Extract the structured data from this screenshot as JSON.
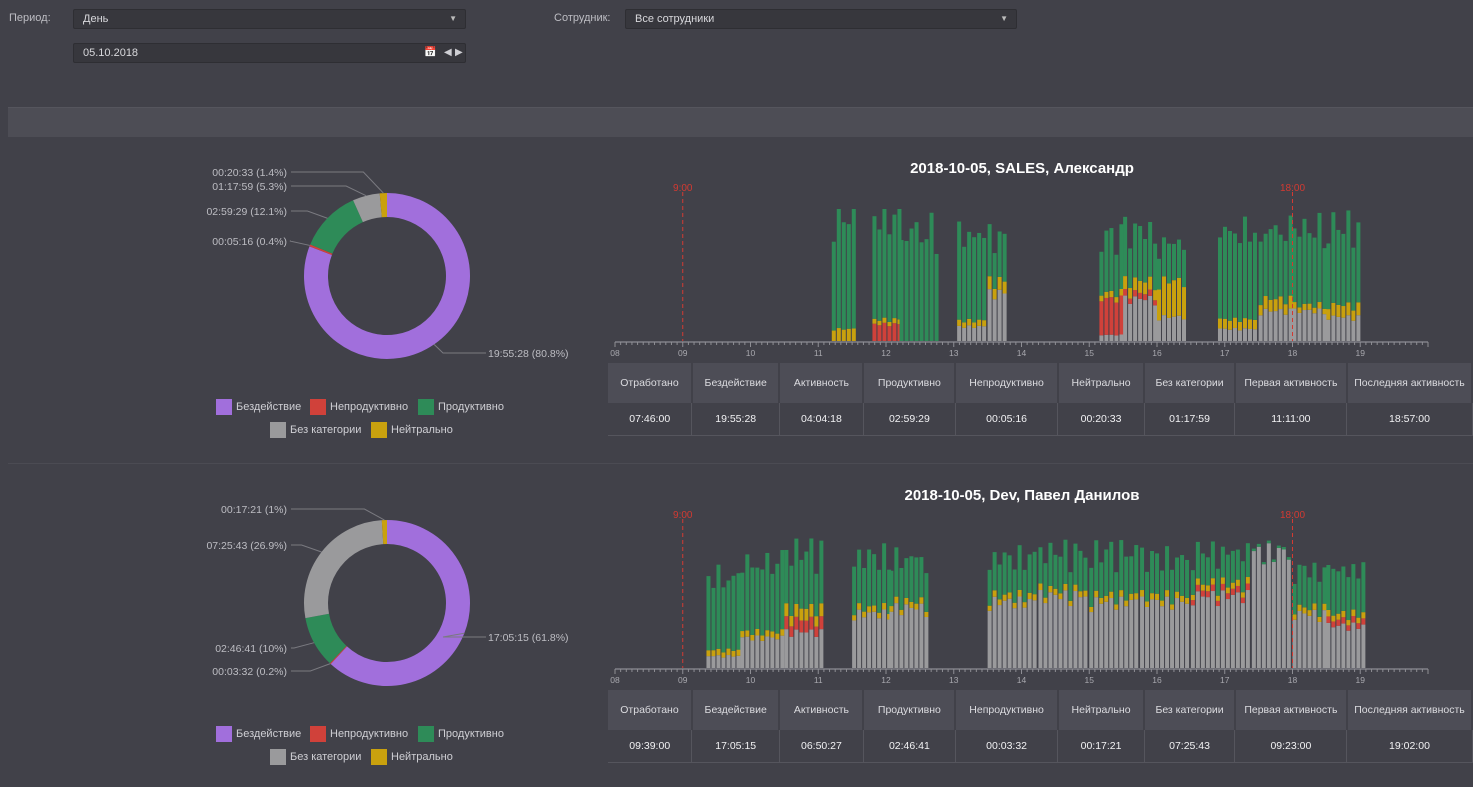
{
  "filters": {
    "period_label": "Период:",
    "period_value": "День",
    "employee_label": "Сотрудник:",
    "employee_value": "Все сотрудники",
    "date_value": "05.10.2018"
  },
  "icons": {
    "calendar": "calendar-icon",
    "prev": "arrow-left-icon",
    "next": "arrow-right-icon",
    "dropdown": "chevron-down-icon"
  },
  "colors": {
    "idle": "#a16fdc",
    "unproductive": "#d0413a",
    "productive": "#2e8b58",
    "uncategorized": "#9a9a9c",
    "neutral": "#c9a10e",
    "marker": "#d23a32"
  },
  "legend": {
    "idle": "Бездействие",
    "unproductive": "Непродуктивно",
    "productive": "Продуктивно",
    "uncategorized": "Без категории",
    "neutral": "Нейтрально"
  },
  "table_headers": [
    "Отработано",
    "Бездействие",
    "Активность",
    "Продуктивно",
    "Непродуктивно",
    "Нейтрально",
    "Без категории",
    "Первая активность",
    "Последняя активность"
  ],
  "reports": [
    {
      "title": "2018-10-05, SALES, Александр",
      "stats": [
        "07:46:00",
        "19:55:28",
        "04:04:18",
        "02:59:29",
        "00:05:16",
        "00:20:33",
        "01:17:59",
        "11:11:00",
        "18:57:00"
      ],
      "pie_labels": {
        "idle": "19:55:28 (80.8%)",
        "unproductive": "00:05:16 (0.4%)",
        "productive": "02:59:29 (12.1%)",
        "uncategorized": "01:17:59 (5.3%)",
        "neutral": "00:20:33 (1.4%)"
      },
      "chart_data": {
        "type": "donut",
        "categories": [
          "Бездействие",
          "Непродуктивно",
          "Продуктивно",
          "Без категории",
          "Нейтрально"
        ],
        "values": [
          80.8,
          0.4,
          12.1,
          5.3,
          1.4
        ],
        "unit": "%"
      },
      "timeline": {
        "type": "bar",
        "x_ticks": [
          "08",
          "09",
          "10",
          "11",
          "12",
          "13",
          "14",
          "15",
          "16",
          "17",
          "18",
          "19"
        ],
        "markers": [
          {
            "label": "9:00",
            "hour": 9
          },
          {
            "label": "18:00",
            "hour": 18
          }
        ],
        "ylim": [
          0,
          1
        ],
        "bins": [
          {
            "start": 11.2,
            "end": 11.55,
            "productive": 0.9,
            "neutral": 0.1,
            "uncat": 0.0,
            "unprod": 0.0
          },
          {
            "start": 11.8,
            "end": 12.2,
            "productive": 0.82,
            "neutral": 0.04,
            "uncat": 0.0,
            "unprod": 0.14
          },
          {
            "start": 12.2,
            "end": 12.75,
            "productive": 0.88,
            "neutral": 0.0,
            "uncat": 0.0,
            "unprod": 0.0
          },
          {
            "start": 13.05,
            "end": 13.5,
            "productive": 0.68,
            "neutral": 0.05,
            "uncat": 0.12,
            "unprod": 0.0
          },
          {
            "start": 13.5,
            "end": 13.75,
            "productive": 0.35,
            "neutral": 0.1,
            "uncat": 0.4,
            "unprod": 0.0
          },
          {
            "start": 15.15,
            "end": 15.5,
            "productive": 0.45,
            "neutral": 0.05,
            "uncat": 0.05,
            "unprod": 0.3
          },
          {
            "start": 15.5,
            "end": 16.0,
            "productive": 0.4,
            "neutral": 0.1,
            "uncat": 0.35,
            "unprod": 0.05
          },
          {
            "start": 16.0,
            "end": 16.45,
            "productive": 0.3,
            "neutral": 0.3,
            "uncat": 0.2,
            "unprod": 0.0
          },
          {
            "start": 16.9,
            "end": 17.5,
            "productive": 0.7,
            "neutral": 0.08,
            "uncat": 0.1,
            "unprod": 0.0
          },
          {
            "start": 17.5,
            "end": 18.0,
            "productive": 0.55,
            "neutral": 0.1,
            "uncat": 0.25,
            "unprod": 0.0
          },
          {
            "start": 18.0,
            "end": 18.5,
            "productive": 0.6,
            "neutral": 0.05,
            "uncat": 0.25,
            "unprod": 0.0
          },
          {
            "start": 18.5,
            "end": 19.0,
            "productive": 0.62,
            "neutral": 0.1,
            "uncat": 0.2,
            "unprod": 0.0
          }
        ]
      }
    },
    {
      "title": "2018-10-05, Dev, Павел Данилов",
      "stats": [
        "09:39:00",
        "17:05:15",
        "06:50:27",
        "02:46:41",
        "00:03:32",
        "00:17:21",
        "07:25:43",
        "09:23:00",
        "19:02:00"
      ],
      "pie_labels": {
        "idle": "17:05:15 (61.8%)",
        "unproductive": "00:03:32 (0.2%)",
        "productive": "02:46:41 (10%)",
        "uncategorized": "07:25:43 (26.9%)",
        "neutral": "00:17:21 (1%)"
      },
      "chart_data": {
        "type": "donut",
        "categories": [
          "Бездействие",
          "Непродуктивно",
          "Продуктивно",
          "Без категории",
          "Нейтрально"
        ],
        "values": [
          61.8,
          0.2,
          10,
          26.9,
          1
        ],
        "unit": "%"
      },
      "timeline": {
        "type": "bar",
        "x_ticks": [
          "08",
          "09",
          "10",
          "11",
          "12",
          "13",
          "14",
          "15",
          "16",
          "17",
          "18",
          "19"
        ],
        "markers": [
          {
            "label": "9:00",
            "hour": 9
          },
          {
            "label": "18:00",
            "hour": 18
          }
        ],
        "ylim": [
          0,
          1
        ],
        "bins": [
          {
            "start": 9.35,
            "end": 9.85,
            "productive": 0.58,
            "neutral": 0.05,
            "uncat": 0.1,
            "unprod": 0.0
          },
          {
            "start": 9.85,
            "end": 10.5,
            "productive": 0.55,
            "neutral": 0.05,
            "uncat": 0.25,
            "unprod": 0.0
          },
          {
            "start": 10.5,
            "end": 11.1,
            "productive": 0.45,
            "neutral": 0.1,
            "uncat": 0.3,
            "unprod": 0.1
          },
          {
            "start": 11.5,
            "end": 12.05,
            "productive": 0.4,
            "neutral": 0.05,
            "uncat": 0.45,
            "unprod": 0.0
          },
          {
            "start": 12.05,
            "end": 12.65,
            "productive": 0.35,
            "neutral": 0.05,
            "uncat": 0.5,
            "unprod": 0.0
          },
          {
            "start": 13.5,
            "end": 14.25,
            "productive": 0.3,
            "neutral": 0.05,
            "uncat": 0.55,
            "unprod": 0.0
          },
          {
            "start": 14.25,
            "end": 15.0,
            "productive": 0.3,
            "neutral": 0.05,
            "uncat": 0.6,
            "unprod": 0.0
          },
          {
            "start": 15.0,
            "end": 15.75,
            "productive": 0.35,
            "neutral": 0.05,
            "uncat": 0.55,
            "unprod": 0.0
          },
          {
            "start": 15.75,
            "end": 16.5,
            "productive": 0.3,
            "neutral": 0.05,
            "uncat": 0.55,
            "unprod": 0.0
          },
          {
            "start": 16.5,
            "end": 17.4,
            "productive": 0.25,
            "neutral": 0.05,
            "uncat": 0.6,
            "unprod": 0.05
          },
          {
            "start": 17.4,
            "end": 18.0,
            "productive": 0.02,
            "neutral": 0.0,
            "uncat": 0.96,
            "unprod": 0.0
          },
          {
            "start": 18.0,
            "end": 18.5,
            "productive": 0.3,
            "neutral": 0.05,
            "uncat": 0.45,
            "unprod": 0.0
          },
          {
            "start": 18.5,
            "end": 19.05,
            "productive": 0.35,
            "neutral": 0.05,
            "uncat": 0.35,
            "unprod": 0.05
          }
        ]
      }
    }
  ]
}
